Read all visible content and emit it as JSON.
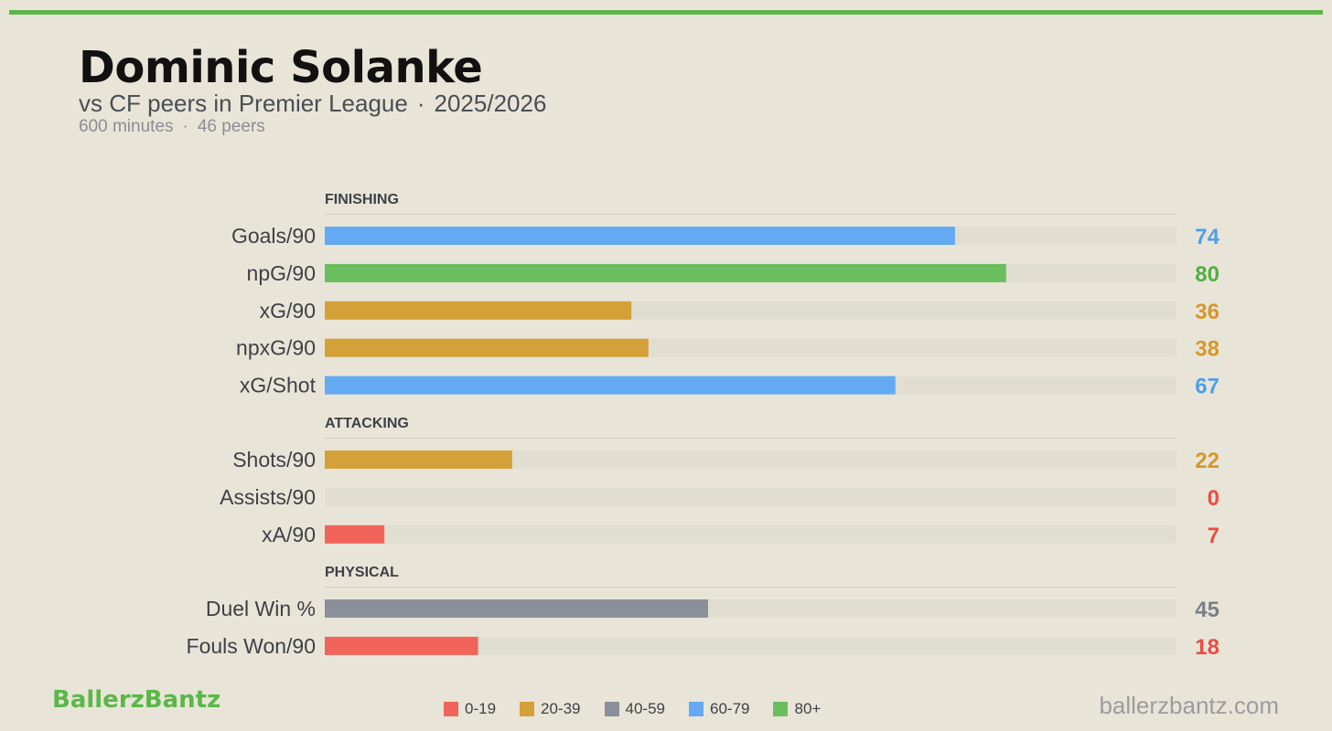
{
  "header": {
    "title": "Dominic Solanke",
    "subtitle_main": "vs CF peers in Premier League",
    "subtitle_sep": "·",
    "subtitle_season": "2025/2026",
    "meta_minutes": "600 minutes",
    "meta_sep": "·",
    "meta_peers": "46 peers"
  },
  "colors": {
    "top_rule": "#5BB748",
    "brand": "#5BB748",
    "track": "#E0DDD1",
    "divider": "#CFCCC0",
    "band_0_19": "#F2645A",
    "band_20_39": "#D4A038",
    "band_40_59": "#8A8F99",
    "band_60_79": "#64AAF2",
    "band_80_plus": "#6BBE5E",
    "value_0_19": "#EE4B41",
    "value_20_39": "#D4982C",
    "value_40_59": "#7A808A",
    "value_60_79": "#4E9FEA",
    "value_80_plus": "#52AE44"
  },
  "chart_data": {
    "type": "bar",
    "orientation": "horizontal",
    "xlim": [
      0,
      100
    ],
    "grid": false,
    "legend_position": "bottom",
    "sections": [
      {
        "name": "FINISHING",
        "rows": [
          {
            "label": "Goals/90",
            "value": 74
          },
          {
            "label": "npG/90",
            "value": 80
          },
          {
            "label": "xG/90",
            "value": 36
          },
          {
            "label": "npxG/90",
            "value": 38
          },
          {
            "label": "xG/Shot",
            "value": 67
          }
        ]
      },
      {
        "name": "ATTACKING",
        "rows": [
          {
            "label": "Shots/90",
            "value": 22
          },
          {
            "label": "Assists/90",
            "value": 0
          },
          {
            "label": "xA/90",
            "value": 7
          }
        ]
      },
      {
        "name": "PHYSICAL",
        "rows": [
          {
            "label": "Duel Win %",
            "value": 45
          },
          {
            "label": "Fouls Won/90",
            "value": 18
          }
        ]
      }
    ],
    "legend": [
      {
        "label": "0-19",
        "min": 0,
        "max": 19,
        "color_key": "band_0_19"
      },
      {
        "label": "20-39",
        "min": 20,
        "max": 39,
        "color_key": "band_20_39"
      },
      {
        "label": "40-59",
        "min": 40,
        "max": 59,
        "color_key": "band_40_59"
      },
      {
        "label": "60-79",
        "min": 60,
        "max": 79,
        "color_key": "band_60_79"
      },
      {
        "label": "80+",
        "min": 80,
        "max": 100,
        "color_key": "band_80_plus"
      }
    ]
  },
  "footer": {
    "brand": "BallerzBantz",
    "site": "ballerzbantz.com"
  }
}
